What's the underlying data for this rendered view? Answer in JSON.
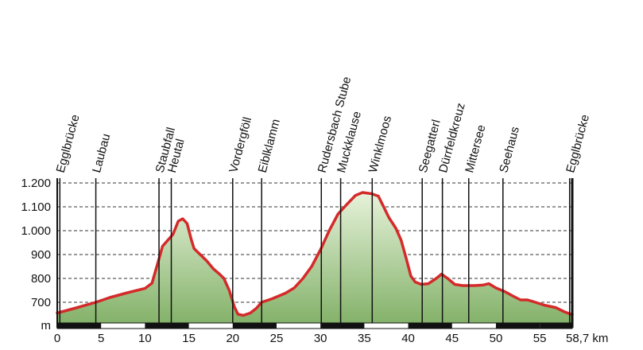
{
  "chart_data": {
    "type": "area",
    "x_unit": "km",
    "y_unit": "m",
    "xlim": [
      0,
      58.7
    ],
    "ylim": [
      640,
      1200
    ],
    "y_ticks": [
      {
        "value": 700,
        "label": "700"
      },
      {
        "value": 800,
        "label": "800"
      },
      {
        "value": 900,
        "label": "900"
      },
      {
        "value": 1000,
        "label": "1.000"
      },
      {
        "value": 1100,
        "label": "1.100"
      },
      {
        "value": 1200,
        "label": "1.200"
      }
    ],
    "y_unit_label": "m",
    "x_ticks": [
      {
        "value": 0,
        "label": "0"
      },
      {
        "value": 5,
        "label": "5"
      },
      {
        "value": 10,
        "label": "10"
      },
      {
        "value": 15,
        "label": "15"
      },
      {
        "value": 20,
        "label": "20"
      },
      {
        "value": 25,
        "label": "25"
      },
      {
        "value": 30,
        "label": "30"
      },
      {
        "value": 35,
        "label": "35"
      },
      {
        "value": 40,
        "label": "40"
      },
      {
        "value": 45,
        "label": "45"
      },
      {
        "value": 50,
        "label": "50"
      },
      {
        "value": 55,
        "label": "55"
      },
      {
        "value": 58.7,
        "label": "58,7 km"
      }
    ],
    "waypoints": [
      {
        "name": "Egglbrücke",
        "km": 0.3
      },
      {
        "name": "Laubau",
        "km": 4.4
      },
      {
        "name": "Staubfall",
        "km": 11.6
      },
      {
        "name": "Heutal",
        "km": 13.0
      },
      {
        "name": "Vordergföll",
        "km": 20.0
      },
      {
        "name": "Eiblklamm",
        "km": 23.3
      },
      {
        "name": "Rudersbach Stube",
        "km": 30.1
      },
      {
        "name": "Muckklause",
        "km": 32.3
      },
      {
        "name": "Winklmoos",
        "km": 35.9
      },
      {
        "name": "Seegatterl",
        "km": 41.6
      },
      {
        "name": "Dürrfeldkreuz",
        "km": 43.9
      },
      {
        "name": "Mittersee",
        "km": 46.9
      },
      {
        "name": "Seehaus",
        "km": 50.8
      },
      {
        "name": "Egglbrücke",
        "km": 58.4
      }
    ],
    "profile": [
      [
        0,
        655
      ],
      [
        2,
        675
      ],
      [
        4.4,
        700
      ],
      [
        6,
        720
      ],
      [
        8,
        740
      ],
      [
        10,
        758
      ],
      [
        10.8,
        780
      ],
      [
        11.5,
        870
      ],
      [
        12.0,
        935
      ],
      [
        12.6,
        960
      ],
      [
        13.2,
        985
      ],
      [
        13.8,
        1040
      ],
      [
        14.3,
        1050
      ],
      [
        14.8,
        1030
      ],
      [
        15.3,
        960
      ],
      [
        15.6,
        925
      ],
      [
        16.3,
        900
      ],
      [
        17.0,
        875
      ],
      [
        17.8,
        840
      ],
      [
        18.5,
        818
      ],
      [
        19.0,
        800
      ],
      [
        19.6,
        750
      ],
      [
        20.2,
        680
      ],
      [
        20.6,
        650
      ],
      [
        21.2,
        645
      ],
      [
        22.0,
        655
      ],
      [
        22.7,
        675
      ],
      [
        23.3,
        700
      ],
      [
        24.5,
        715
      ],
      [
        26,
        738
      ],
      [
        27,
        760
      ],
      [
        28,
        800
      ],
      [
        29,
        850
      ],
      [
        30,
        920
      ],
      [
        31,
        1000
      ],
      [
        32,
        1070
      ],
      [
        33,
        1110
      ],
      [
        34,
        1148
      ],
      [
        34.8,
        1160
      ],
      [
        35.8,
        1155
      ],
      [
        36.6,
        1145
      ],
      [
        37.2,
        1100
      ],
      [
        37.8,
        1055
      ],
      [
        38.6,
        1010
      ],
      [
        39.2,
        960
      ],
      [
        39.8,
        880
      ],
      [
        40.3,
        810
      ],
      [
        40.8,
        785
      ],
      [
        41.5,
        775
      ],
      [
        42.3,
        778
      ],
      [
        43.2,
        800
      ],
      [
        43.8,
        818
      ],
      [
        44.5,
        800
      ],
      [
        45.3,
        775
      ],
      [
        46.2,
        770
      ],
      [
        47.5,
        770
      ],
      [
        48.5,
        772
      ],
      [
        49.2,
        778
      ],
      [
        50.0,
        760
      ],
      [
        51.0,
        745
      ],
      [
        52.0,
        725
      ],
      [
        52.8,
        710
      ],
      [
        53.6,
        710
      ],
      [
        54.5,
        700
      ],
      [
        55.5,
        688
      ],
      [
        56.8,
        678
      ],
      [
        57.8,
        660
      ],
      [
        58.7,
        648
      ]
    ]
  }
}
